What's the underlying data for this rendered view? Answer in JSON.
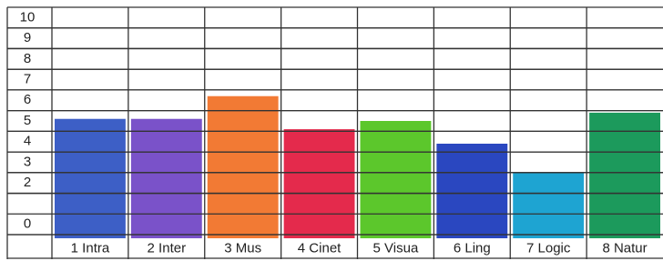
{
  "chart_data": {
    "type": "bar",
    "categories": [
      "1 Intra",
      "2 Inter",
      "3 Mus",
      "4 Cinet",
      "5 Visua",
      "6 Ling",
      "7 Logic",
      "8 Natur"
    ],
    "values": [
      5.6,
      5.6,
      6.7,
      5.1,
      5.5,
      4.4,
      3.0,
      5.9
    ],
    "colors": [
      "#3d5fc6",
      "#7a52c9",
      "#f27a34",
      "#e42a4c",
      "#5cc72c",
      "#2a47c0",
      "#1ea4d2",
      "#1c9a5c"
    ],
    "ylim": [
      0,
      11
    ],
    "yticks": [
      0,
      2,
      3,
      4,
      5,
      6,
      7,
      8,
      9,
      10
    ],
    "grid": true
  }
}
